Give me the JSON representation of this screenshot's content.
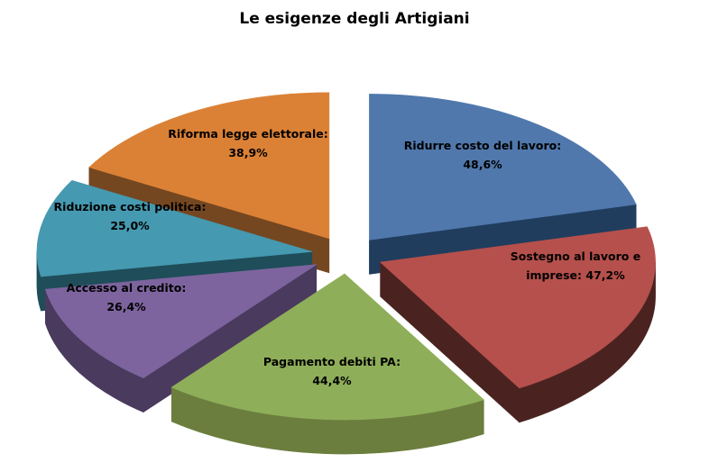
{
  "page": {
    "background": "#FFFFFF"
  },
  "header": {
    "title": "Le esigenze degli Artigiani"
  },
  "chart_data": {
    "type": "pie",
    "variant": "3d-exploded",
    "title": "Le esigenze degli Artigiani",
    "legend": "none",
    "labels_on_slices": true,
    "value_suffix": "%",
    "decimal_separator": ",",
    "start_angle_deg": 0,
    "clockwise": true,
    "slices": [
      {
        "name": "Ridurre costo del lavoro",
        "value": 48.6,
        "value_label": "48,6%",
        "label_lines": [
          "Ridurre costo del lavoro:",
          "48,6%"
        ],
        "color": "#5078AC",
        "side_color": "#203D5E"
      },
      {
        "name": "Sostegno al lavoro e imprese",
        "value": 47.2,
        "value_label": "47,2%",
        "label_lines": [
          "Sostegno al lavoro e",
          "imprese: 47,2%"
        ],
        "color": "#B6504C",
        "side_color": "#4A2321"
      },
      {
        "name": "Pagamento debiti PA",
        "value": 44.4,
        "value_label": "44,4%",
        "label_lines": [
          "Pagamento debiti PA:",
          "44,4%"
        ],
        "color": "#8FAE59",
        "side_color": "#6B7E3E"
      },
      {
        "name": "Accesso al credito",
        "value": 26.4,
        "value_label": "26,4%",
        "label_lines": [
          "Accesso al credito:",
          "26,4%"
        ],
        "color": "#7D649E",
        "side_color": "#493A5E"
      },
      {
        "name": "Riduzione costi politica",
        "value": 25.0,
        "value_label": "25,0%",
        "label_lines": [
          "Riduzione costi politica:",
          "25,0%"
        ],
        "color": "#4599B0",
        "side_color": "#1F4D5A"
      },
      {
        "name": "Riforma legge elettorale",
        "value": 38.9,
        "value_label": "38,9%",
        "label_lines": [
          "Riforma legge elettorale:",
          "38,9%"
        ],
        "color": "#DB8136",
        "side_color": "#754720"
      }
    ]
  }
}
